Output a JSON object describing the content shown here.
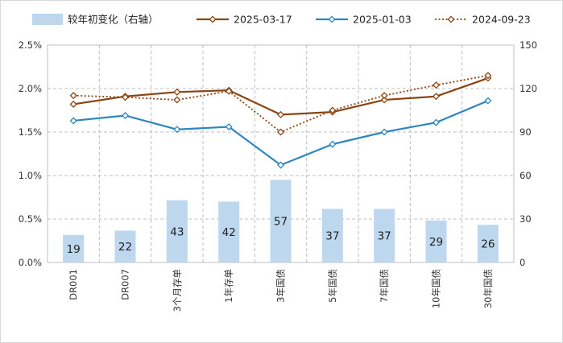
{
  "chart_data": {
    "type": "bar+line",
    "categories": [
      "DR001",
      "DR007",
      "3个月存单",
      "1年存单",
      "3年国债",
      "5年国债",
      "7年国债",
      "10年国债",
      "30年国债"
    ],
    "bar_series": {
      "name": "较年初变化（右轴）",
      "axis": "right",
      "values": [
        19,
        22,
        43,
        42,
        57,
        37,
        37,
        29,
        26
      ],
      "color": "#bdd7ee"
    },
    "line_series": [
      {
        "name": "2025-03-17",
        "axis": "left",
        "values": [
          1.82,
          1.91,
          1.96,
          1.98,
          1.7,
          1.73,
          1.87,
          1.91,
          2.12
        ],
        "color": "#8b4513",
        "style": "solid"
      },
      {
        "name": "2025-01-03",
        "axis": "left",
        "values": [
          1.63,
          1.69,
          1.53,
          1.56,
          1.12,
          1.36,
          1.5,
          1.61,
          1.86
        ],
        "color": "#2e86c1",
        "style": "solid"
      },
      {
        "name": "2024-09-23",
        "axis": "left",
        "values": [
          1.92,
          1.9,
          1.87,
          1.97,
          1.5,
          1.75,
          1.92,
          2.04,
          2.15
        ],
        "color": "#8b4513",
        "style": "dotted"
      }
    ],
    "left_axis": {
      "ylim": [
        0,
        2.5
      ],
      "ticks": [
        "0.0%",
        "0.5%",
        "1.0%",
        "1.5%",
        "2.0%",
        "2.5%"
      ]
    },
    "right_axis": {
      "ylim": [
        0,
        150
      ],
      "ticks": [
        "0",
        "30",
        "60",
        "90",
        "120",
        "150"
      ]
    },
    "grid": "dashed vertical and horizontal",
    "legend_position": "top"
  }
}
